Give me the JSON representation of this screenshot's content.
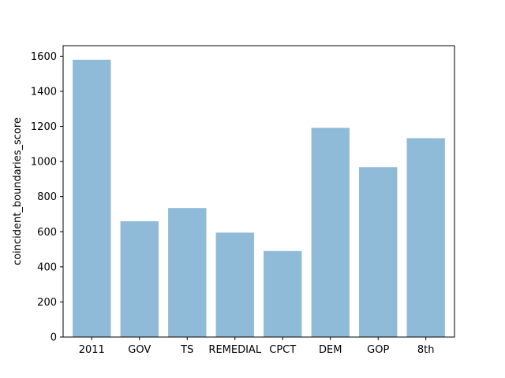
{
  "chart_data": {
    "type": "bar",
    "title": "",
    "xlabel": "",
    "ylabel": "coincident_boundaries_score",
    "categories": [
      "2011",
      "GOV",
      "TS",
      "REMEDIAL",
      "CPCT",
      "DEM",
      "GOP",
      "8th"
    ],
    "values": [
      1580,
      660,
      735,
      595,
      490,
      1192,
      968,
      1133
    ],
    "ylim": [
      0,
      1660
    ],
    "yticks": [
      0,
      200,
      400,
      600,
      800,
      1000,
      1200,
      1400,
      1600
    ],
    "grid": false,
    "bar_color": "#8fbbd9"
  }
}
